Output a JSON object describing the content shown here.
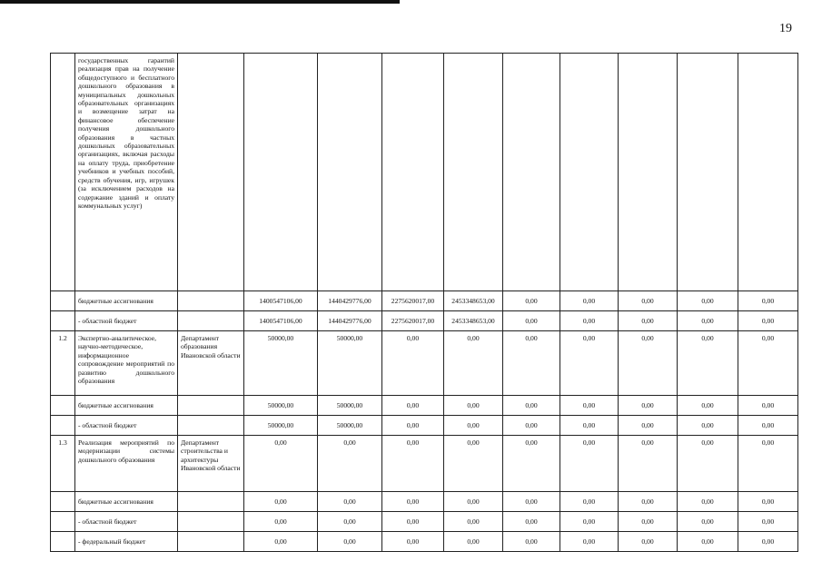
{
  "page_number": "19",
  "rows": [
    {
      "no": "",
      "name": "государственных гарантий реализация прав на получение общедоступного и бесплатного дошкольного образования в муниципальных дошкольных образовательных организациях и возмещение затрат на финансовое обеспечение получения дошкольного образования в частных дошкольных образовательных организациях, включая расходы на оплату труда, приобретение учебников и учебных пособий, средств обучения, игр, игрушек (за исключением расходов на содержание зданий и оплату коммунальных услуг)",
      "exec": "",
      "values": [
        "",
        "",
        "",
        "",
        "",
        "",
        "",
        "",
        ""
      ]
    },
    {
      "no": "",
      "name": "бюджетные ассигнования",
      "exec": "",
      "values": [
        "1400547106,00",
        "1440429776,00",
        "2275620017,00",
        "2453348653,00",
        "0,00",
        "0,00",
        "0,00",
        "0,00",
        "0,00"
      ]
    },
    {
      "no": "",
      "name": "- областной бюджет",
      "exec": "",
      "values": [
        "1400547106,00",
        "1440429776,00",
        "2275620017,00",
        "2453348653,00",
        "0,00",
        "0,00",
        "0,00",
        "0,00",
        "0,00"
      ]
    },
    {
      "no": "1.2",
      "name": "Экспертно-аналитическое, научно-методическое, информационное сопровождение мероприятий по развитию дошкольного образования",
      "exec": "Департамент образования Ивановской области",
      "values": [
        "50000,00",
        "50000,00",
        "0,00",
        "0,00",
        "0,00",
        "0,00",
        "0,00",
        "0,00",
        "0,00"
      ]
    },
    {
      "no": "",
      "name": "бюджетные ассигнования",
      "exec": "",
      "values": [
        "50000,00",
        "50000,00",
        "0,00",
        "0,00",
        "0,00",
        "0,00",
        "0,00",
        "0,00",
        "0,00"
      ]
    },
    {
      "no": "",
      "name": "- областной бюджет",
      "exec": "",
      "values": [
        "50000,00",
        "50000,00",
        "0,00",
        "0,00",
        "0,00",
        "0,00",
        "0,00",
        "0,00",
        "0,00"
      ]
    },
    {
      "no": "1.3",
      "name": "Реализация мероприятий по модернизации системы дошкольного образования",
      "exec": "Департамент строительства и архитектуры Ивановской области",
      "values": [
        "0,00",
        "0,00",
        "0,00",
        "0,00",
        "0,00",
        "0,00",
        "0,00",
        "0,00",
        "0,00"
      ]
    },
    {
      "no": "",
      "name": "бюджетные ассигнования",
      "exec": "",
      "values": [
        "0,00",
        "0,00",
        "0,00",
        "0,00",
        "0,00",
        "0,00",
        "0,00",
        "0,00",
        "0,00"
      ]
    },
    {
      "no": "",
      "name": "- областной бюджет",
      "exec": "",
      "values": [
        "0,00",
        "0,00",
        "0,00",
        "0,00",
        "0,00",
        "0,00",
        "0,00",
        "0,00",
        "0,00"
      ]
    },
    {
      "no": "",
      "name": "- федеральный бюджет",
      "exec": "",
      "values": [
        "0,00",
        "0,00",
        "0,00",
        "0,00",
        "0,00",
        "0,00",
        "0,00",
        "0,00",
        "0,00"
      ]
    }
  ]
}
